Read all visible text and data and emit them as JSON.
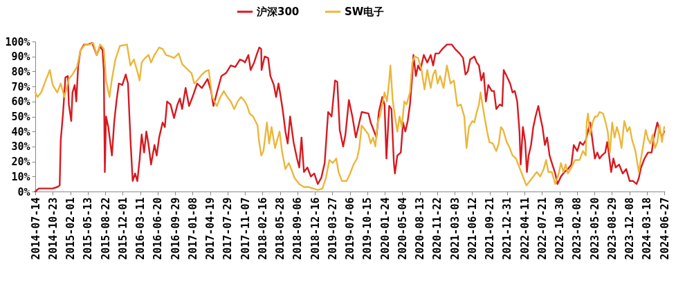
{
  "chart_data": {
    "type": "line",
    "legend": "top",
    "grid": false,
    "marker": "none",
    "line_style": "solid",
    "ylim": [
      0,
      100
    ],
    "yticks": [
      {
        "value": 0,
        "label": "0%"
      },
      {
        "value": 10,
        "label": "10%"
      },
      {
        "value": 20,
        "label": "20%"
      },
      {
        "value": 30,
        "label": "30%"
      },
      {
        "value": 40,
        "label": "40%"
      },
      {
        "value": 50,
        "label": "50%"
      },
      {
        "value": 60,
        "label": "60%"
      },
      {
        "value": 70,
        "label": "70%"
      },
      {
        "value": 80,
        "label": "80%"
      },
      {
        "value": 90,
        "label": "90%"
      },
      {
        "value": 100,
        "label": "100%"
      }
    ],
    "xlim": [
      "2014-07-14",
      "2024-07-01"
    ],
    "xticks": [
      "2014-07-14",
      "2014-10-23",
      "2015-02-01",
      "2015-05-13",
      "2015-08-22",
      "2015-12-01",
      "2016-03-11",
      "2016-06-20",
      "2016-09-29",
      "2017-01-08",
      "2017-04-19",
      "2017-07-29",
      "2017-11-07",
      "2018-02-16",
      "2018-05-28",
      "2018-09-06",
      "2018-12-16",
      "2019-03-27",
      "2019-07-06",
      "2019-10-15",
      "2020-01-24",
      "2020-05-04",
      "2020-08-13",
      "2020-11-22",
      "2021-03-03",
      "2021-06-12",
      "2021-09-21",
      "2021-12-31",
      "2022-04-11",
      "2022-07-21",
      "2022-10-30",
      "2023-02-08",
      "2023-05-20",
      "2023-08-29",
      "2023-12-08",
      "2024-03-18",
      "2024-06-27"
    ],
    "series": [
      {
        "name": "沪深300",
        "color": "#d7191f",
        "x": [
          "2014-07-14",
          "2014-08-03",
          "2014-09-12",
          "2014-10-23",
          "2014-11-18",
          "2014-12-02",
          "2014-12-08",
          "2014-12-22",
          "2015-01-04",
          "2015-01-18",
          "2015-01-24",
          "2015-02-07",
          "2015-02-14",
          "2015-02-27",
          "2015-03-08",
          "2015-03-19",
          "2015-04-01",
          "2015-04-22",
          "2015-05-12",
          "2015-06-08",
          "2015-07-04",
          "2015-07-24",
          "2015-08-07",
          "2015-08-14",
          "2015-08-20",
          "2015-08-27",
          "2015-09-09",
          "2015-09-30",
          "2015-10-13",
          "2015-10-26",
          "2015-11-09",
          "2015-11-29",
          "2015-12-19",
          "2016-01-01",
          "2016-01-15",
          "2016-01-28",
          "2016-02-11",
          "2016-02-24",
          "2016-03-08",
          "2016-03-20",
          "2016-04-03",
          "2016-04-16",
          "2016-04-29",
          "2016-05-13",
          "2016-06-02",
          "2016-06-15",
          "2016-06-29",
          "2016-07-19",
          "2016-08-01",
          "2016-08-14",
          "2016-09-03",
          "2016-09-23",
          "2016-10-13",
          "2016-10-27",
          "2016-11-09",
          "2016-11-29",
          "2016-12-19",
          "2017-01-08",
          "2017-02-04",
          "2017-03-03",
          "2017-04-05",
          "2017-04-25",
          "2017-05-09",
          "2017-05-29",
          "2017-06-24",
          "2017-07-21",
          "2017-08-17",
          "2017-09-12",
          "2017-10-09",
          "2017-10-29",
          "2017-11-07",
          "2017-11-27",
          "2017-12-10",
          "2017-12-30",
          "2018-01-13",
          "2018-01-29",
          "2018-02-09",
          "2018-02-11",
          "2018-03-01",
          "2018-03-21",
          "2018-04-03",
          "2018-04-23",
          "2018-05-06",
          "2018-05-20",
          "2018-06-02",
          "2018-06-15",
          "2018-06-29",
          "2018-07-12",
          "2018-07-26",
          "2018-08-15",
          "2018-09-04",
          "2018-09-17",
          "2018-09-30",
          "2018-10-14",
          "2018-11-03",
          "2018-11-23",
          "2018-12-13",
          "2019-01-02",
          "2019-01-22",
          "2019-02-11",
          "2019-03-03",
          "2019-03-23",
          "2019-04-12",
          "2019-04-25",
          "2019-05-09",
          "2019-05-29",
          "2019-06-11",
          "2019-07-01",
          "2019-07-21",
          "2019-08-10",
          "2019-08-30",
          "2019-09-13",
          "2019-10-22",
          "2019-11-04",
          "2019-11-24",
          "2019-12-07",
          "2019-12-21",
          "2020-01-10",
          "2020-01-23",
          "2020-02-03",
          "2020-02-19",
          "2020-03-03",
          "2020-03-17",
          "2020-03-23",
          "2020-04-06",
          "2020-04-26",
          "2020-05-09",
          "2020-05-22",
          "2020-06-05",
          "2020-06-18",
          "2020-07-02",
          "2020-07-08",
          "2020-07-22",
          "2020-08-04",
          "2020-08-17",
          "2020-09-06",
          "2020-09-26",
          "2020-10-16",
          "2020-10-30",
          "2020-11-12",
          "2020-12-02",
          "2020-12-22",
          "2021-01-18",
          "2021-02-14",
          "2021-03-06",
          "2021-04-01",
          "2021-04-21",
          "2021-05-05",
          "2021-05-18",
          "2021-06-01",
          "2021-06-14",
          "2021-06-25",
          "2021-07-09",
          "2021-07-22",
          "2021-08-04",
          "2021-08-18",
          "2021-08-31",
          "2021-09-14",
          "2021-10-04",
          "2021-10-17",
          "2021-10-30",
          "2021-11-19",
          "2021-12-03",
          "2021-12-12",
          "2021-12-29",
          "2022-01-18",
          "2022-02-01",
          "2022-02-14",
          "2022-02-28",
          "2022-03-13",
          "2022-03-20",
          "2022-04-02",
          "2022-04-15",
          "2022-04-25",
          "2022-05-05",
          "2022-05-19",
          "2022-06-01",
          "2022-06-14",
          "2022-06-30",
          "2022-07-11",
          "2022-07-24",
          "2022-08-07",
          "2022-08-20",
          "2022-09-03",
          "2022-09-19",
          "2022-10-06",
          "2022-10-19",
          "2022-11-08",
          "2022-11-28",
          "2022-12-18",
          "2023-01-07",
          "2023-01-21",
          "2023-02-10",
          "2023-02-26",
          "2023-03-15",
          "2023-03-31",
          "2023-04-13",
          "2023-04-26",
          "2023-05-10",
          "2023-05-23",
          "2023-06-06",
          "2023-06-19",
          "2023-07-02",
          "2023-07-22",
          "2023-08-02",
          "2023-08-11",
          "2023-08-25",
          "2023-09-07",
          "2023-09-20",
          "2023-10-10",
          "2023-10-31",
          "2023-11-20",
          "2023-12-10",
          "2023-12-30",
          "2024-01-19",
          "2024-02-01",
          "2024-02-14",
          "2024-03-05",
          "2024-03-25",
          "2024-04-15",
          "2024-04-28",
          "2024-05-18",
          "2024-05-31",
          "2024-06-14",
          "2024-06-27"
        ],
        "values": [
          0,
          2,
          2,
          2,
          3,
          4,
          34,
          53,
          76,
          77,
          58,
          47,
          66,
          71,
          60,
          84,
          94,
          98,
          98,
          99,
          91,
          97,
          94,
          81,
          13,
          50,
          43,
          24,
          46,
          60,
          72,
          71,
          78,
          72,
          35,
          7,
          12,
          7,
          21,
          38,
          26,
          40,
          31,
          18,
          31,
          24,
          36,
          46,
          43,
          60,
          58,
          49,
          58,
          62,
          55,
          69,
          57,
          63,
          72,
          69,
          75,
          67,
          57,
          66,
          77,
          79,
          84,
          83,
          88,
          87,
          86,
          91,
          81,
          86,
          91,
          96,
          95,
          81,
          90,
          89,
          77,
          71,
          63,
          72,
          63,
          53,
          40,
          32,
          50,
          33,
          22,
          16,
          36,
          13,
          16,
          10,
          12,
          5,
          9,
          19,
          53,
          50,
          74,
          73,
          41,
          30,
          38,
          61,
          50,
          36,
          46,
          53,
          52,
          46,
          40,
          36,
          53,
          63,
          58,
          22,
          57,
          55,
          19,
          12,
          24,
          26,
          46,
          40,
          47,
          58,
          78,
          91,
          77,
          84,
          81,
          91,
          86,
          91,
          84,
          92,
          92,
          95,
          98,
          98,
          95,
          92,
          89,
          78,
          80,
          88,
          89,
          90,
          86,
          84,
          74,
          79,
          60,
          71,
          67,
          67,
          55,
          58,
          57,
          81,
          77,
          72,
          66,
          67,
          60,
          40,
          18,
          43,
          33,
          13,
          24,
          31,
          43,
          50,
          57,
          50,
          43,
          31,
          36,
          24,
          18,
          12,
          5,
          10,
          13,
          15,
          18,
          31,
          27,
          33,
          31,
          34,
          40,
          46,
          33,
          22,
          26,
          22,
          24,
          26,
          33,
          26,
          13,
          22,
          16,
          18,
          12,
          15,
          7,
          7,
          5,
          9,
          16,
          22,
          26,
          26,
          36,
          46,
          41,
          36,
          40
        ]
      },
      {
        "name": "SW电子",
        "color": "#ebb73a",
        "x": [
          "2014-07-14",
          "2014-07-27",
          "2014-08-17",
          "2014-09-12",
          "2014-10-06",
          "2014-10-23",
          "2014-11-18",
          "2014-12-08",
          "2014-12-29",
          "2015-01-24",
          "2015-02-14",
          "2015-03-12",
          "2015-04-01",
          "2015-04-28",
          "2015-05-25",
          "2015-06-14",
          "2015-07-04",
          "2015-07-24",
          "2015-08-14",
          "2015-08-27",
          "2015-09-16",
          "2015-09-30",
          "2015-10-20",
          "2015-11-15",
          "2015-12-26",
          "2016-01-15",
          "2016-02-04",
          "2016-02-24",
          "2016-03-08",
          "2016-03-20",
          "2016-04-09",
          "2016-04-29",
          "2016-05-13",
          "2016-06-02",
          "2016-06-29",
          "2016-07-19",
          "2016-08-08",
          "2016-09-03",
          "2016-09-23",
          "2016-10-20",
          "2016-11-09",
          "2016-12-13",
          "2017-01-02",
          "2017-01-18",
          "2017-02-11",
          "2017-03-03",
          "2017-03-23",
          "2017-04-12",
          "2017-04-19",
          "2017-05-02",
          "2017-05-15",
          "2017-05-29",
          "2017-06-18",
          "2017-07-08",
          "2017-07-28",
          "2017-08-17",
          "2017-09-06",
          "2017-09-26",
          "2017-10-16",
          "2017-11-07",
          "2017-11-20",
          "2017-12-04",
          "2017-12-24",
          "2018-01-06",
          "2018-01-19",
          "2018-01-26",
          "2018-02-09",
          "2018-02-22",
          "2018-03-14",
          "2018-03-27",
          "2018-04-10",
          "2018-04-30",
          "2018-05-26",
          "2018-06-09",
          "2018-06-29",
          "2018-07-19",
          "2018-08-08",
          "2018-08-21",
          "2018-09-17",
          "2018-10-14",
          "2018-11-09",
          "2018-12-06",
          "2019-01-02",
          "2019-01-29",
          "2019-02-18",
          "2019-03-10",
          "2019-03-30",
          "2019-04-19",
          "2019-05-02",
          "2019-05-22",
          "2019-06-18",
          "2019-07-08",
          "2019-07-28",
          "2019-08-17",
          "2019-08-30",
          "2019-09-13",
          "2019-10-22",
          "2019-11-04",
          "2019-11-17",
          "2019-12-01",
          "2019-12-14",
          "2019-12-27",
          "2020-01-10",
          "2020-01-23",
          "2020-02-06",
          "2020-02-19",
          "2020-02-26",
          "2020-03-10",
          "2020-03-23",
          "2020-04-06",
          "2020-04-19",
          "2020-05-02",
          "2020-05-16",
          "2020-05-29",
          "2020-06-18",
          "2020-07-02",
          "2020-07-15",
          "2020-08-04",
          "2020-08-24",
          "2020-09-10",
          "2020-09-26",
          "2020-10-16",
          "2020-10-30",
          "2020-11-12",
          "2020-11-25",
          "2020-12-09",
          "2020-12-29",
          "2021-01-18",
          "2021-02-07",
          "2021-02-27",
          "2021-03-19",
          "2021-04-08",
          "2021-04-28",
          "2021-05-11",
          "2021-05-25",
          "2021-06-14",
          "2021-06-25",
          "2021-07-09",
          "2021-07-22",
          "2021-07-31",
          "2021-08-11",
          "2021-08-24",
          "2021-09-07",
          "2021-09-20",
          "2021-10-10",
          "2021-10-30",
          "2021-11-13",
          "2021-11-26",
          "2021-12-09",
          "2021-12-29",
          "2022-01-12",
          "2022-02-01",
          "2022-02-21",
          "2022-03-13",
          "2022-04-02",
          "2022-04-22",
          "2022-05-12",
          "2022-06-01",
          "2022-06-21",
          "2022-07-11",
          "2022-07-31",
          "2022-08-14",
          "2022-08-27",
          "2022-09-16",
          "2022-10-06",
          "2022-10-26",
          "2022-11-08",
          "2022-11-22",
          "2022-12-05",
          "2022-12-18",
          "2023-01-07",
          "2023-01-28",
          "2023-02-23",
          "2023-03-15",
          "2023-03-31",
          "2023-04-06",
          "2023-04-13",
          "2023-04-26",
          "2023-05-10",
          "2023-05-23",
          "2023-06-06",
          "2023-06-19",
          "2023-07-09",
          "2023-07-22",
          "2023-08-05",
          "2023-08-18",
          "2023-08-31",
          "2023-09-14",
          "2023-09-27",
          "2023-10-10",
          "2023-10-24",
          "2023-11-09",
          "2023-11-26",
          "2023-12-10",
          "2023-12-23",
          "2024-01-12",
          "2024-02-01",
          "2024-02-21",
          "2024-03-12",
          "2024-03-25",
          "2024-04-08",
          "2024-04-21",
          "2024-05-05",
          "2024-05-18",
          "2024-05-31",
          "2024-06-14",
          "2024-06-27"
        ],
        "values": [
          66,
          63,
          66,
          74,
          81,
          71,
          66,
          72,
          63,
          75,
          78,
          83,
          94,
          98,
          98,
          99,
          91,
          98,
          95,
          74,
          63,
          75,
          88,
          97,
          98,
          84,
          88,
          80,
          74,
          86,
          89,
          91,
          86,
          91,
          96,
          95,
          91,
          90,
          89,
          92,
          85,
          81,
          79,
          72,
          75,
          78,
          80,
          81,
          74,
          63,
          60,
          57,
          63,
          67,
          63,
          60,
          55,
          60,
          63,
          60,
          57,
          52,
          50,
          47,
          44,
          35,
          24,
          27,
          46,
          32,
          43,
          29,
          40,
          27,
          15,
          19,
          13,
          9,
          5,
          3,
          3,
          2,
          1,
          2,
          9,
          21,
          19,
          22,
          13,
          7,
          7,
          12,
          18,
          22,
          29,
          44,
          38,
          32,
          36,
          30,
          46,
          50,
          58,
          66,
          60,
          74,
          84,
          61,
          50,
          40,
          50,
          43,
          60,
          58,
          66,
          86,
          90,
          89,
          81,
          68,
          81,
          69,
          78,
          81,
          72,
          77,
          69,
          84,
          72,
          74,
          57,
          58,
          50,
          29,
          43,
          47,
          46,
          53,
          58,
          66,
          58,
          49,
          40,
          33,
          32,
          27,
          32,
          43,
          41,
          33,
          30,
          24,
          22,
          16,
          10,
          4,
          7,
          10,
          13,
          10,
          15,
          21,
          13,
          13,
          5,
          12,
          19,
          13,
          18,
          12,
          16,
          21,
          21,
          27,
          24,
          46,
          52,
          38,
          46,
          50,
          50,
          53,
          52,
          47,
          40,
          26,
          46,
          36,
          43,
          38,
          29,
          47,
          40,
          43,
          35,
          27,
          13,
          27,
          41,
          35,
          32,
          38,
          29,
          33,
          44,
          33,
          43
        ]
      }
    ]
  }
}
